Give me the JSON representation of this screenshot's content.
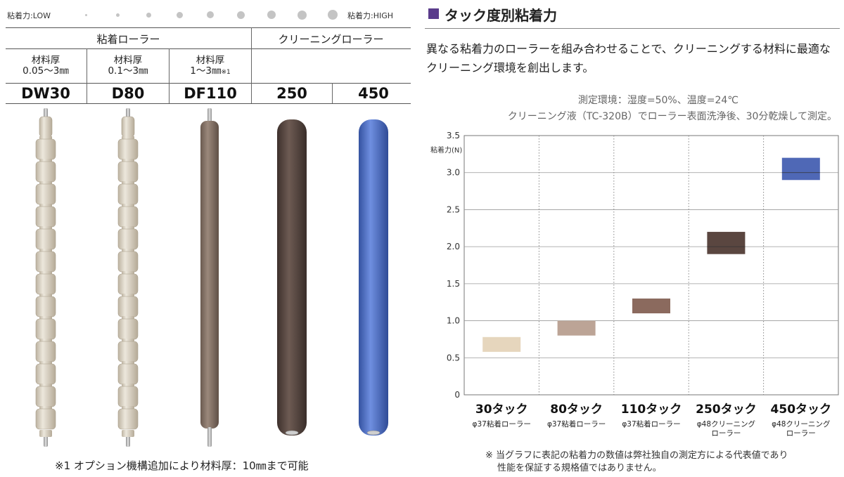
{
  "scale": {
    "low_label": "粘着力:LOW",
    "high_label": "粘着力:HIGH"
  },
  "table": {
    "group_adhesive": "粘着ローラー",
    "group_cleaning": "クリーニングローラー",
    "spec_title": "材料厚",
    "specs": [
      "0.05～3㎜",
      "0.1～3㎜",
      "1～3㎜"
    ],
    "spec_note_mark": "※1",
    "models": [
      "DW30",
      "D80",
      "DF110",
      "250",
      "450"
    ],
    "footnote": "※1 オプション機構追加により材料厚：10㎜まで可能"
  },
  "rollers": [
    {
      "model": "DW30",
      "style": "segmented",
      "color": "#ddd6c6"
    },
    {
      "model": "D80",
      "style": "segmented",
      "color": "#d8d0c3"
    },
    {
      "model": "DF110",
      "style": "solid",
      "color": "#8a776b"
    },
    {
      "model": "250",
      "style": "solid",
      "color": "#5d4c45"
    },
    {
      "model": "450",
      "style": "solid",
      "color": "#4f72c9"
    }
  ],
  "title": "タック度別粘着力",
  "intro": "異なる粘着力のローラーを組み合わせることで、クリーニングする材料に最適なクリーニング環境を創出します。",
  "environment": {
    "line1": "測定環境：湿度=50%、温度=24℃",
    "line2": "クリーニング液（TC-320B）でローラー表面洗浄後、30分乾燥して測定。"
  },
  "chart_data": {
    "type": "bar",
    "subtype": "floating-range",
    "ylabel": "粘着力(N)",
    "ylim": [
      0,
      3.5
    ],
    "yticks": [
      "0",
      "0.5",
      "1.0",
      "1.5",
      "2.0",
      "2.5",
      "3.0",
      "3.5"
    ],
    "grid": true,
    "categories": [
      {
        "label": "30タック",
        "sub": [
          "φ37粘着ローラー"
        ]
      },
      {
        "label": "80タック",
        "sub": [
          "φ37粘着ローラー"
        ]
      },
      {
        "label": "110タック",
        "sub": [
          "φ37粘着ローラー"
        ]
      },
      {
        "label": "250タック",
        "sub": [
          "φ48クリーニング",
          "ローラー"
        ]
      },
      {
        "label": "450タック",
        "sub": [
          "φ48クリーニング",
          "ローラー"
        ]
      }
    ],
    "ranges": [
      {
        "low": 0.58,
        "high": 0.78,
        "color": "#e6d6bd"
      },
      {
        "low": 0.8,
        "high": 1.0,
        "color": "#bca496"
      },
      {
        "low": 1.1,
        "high": 1.3,
        "color": "#8b6a5e"
      },
      {
        "low": 1.9,
        "high": 2.2,
        "color": "#5a4640",
        "midline": 2.0
      },
      {
        "low": 2.9,
        "high": 3.2,
        "color": "#4f68b6",
        "midline": 3.0
      }
    ]
  },
  "chart_note": {
    "line1": "※ 当グラフに表記の粘着力の数値は弊社独自の測定方による代表値であり",
    "line2": "性能を保証する規格値ではありません。"
  }
}
